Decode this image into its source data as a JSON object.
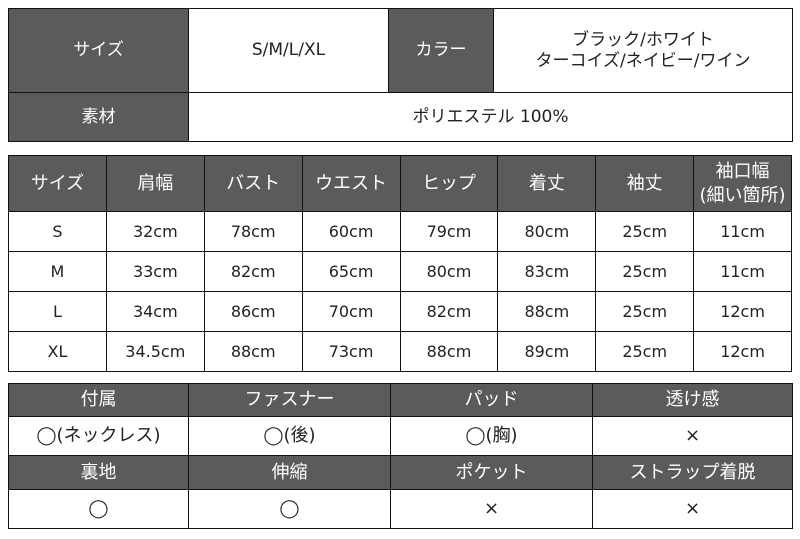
{
  "spec": {
    "size_label": "サイズ",
    "size_value": "S/M/L/XL",
    "color_label": "カラー",
    "color_line1": "ブラック/ホワイト",
    "color_line2": "ターコイズ/ネイビー/ワイン",
    "material_label": "素材",
    "material_value": "ポリエステル 100%"
  },
  "sizes": {
    "headers": [
      "サイズ",
      "肩幅",
      "バスト",
      "ウエスト",
      "ヒップ",
      "着丈",
      "袖丈"
    ],
    "last_header_line1": "袖口幅",
    "last_header_line2": "(細い箇所)",
    "rows": [
      [
        "S",
        "32cm",
        "78cm",
        "60cm",
        "79cm",
        "80cm",
        "25cm",
        "11cm"
      ],
      [
        "M",
        "33cm",
        "82cm",
        "65cm",
        "80cm",
        "83cm",
        "25cm",
        "11cm"
      ],
      [
        "L",
        "34cm",
        "86cm",
        "70cm",
        "82cm",
        "88cm",
        "25cm",
        "12cm"
      ],
      [
        "XL",
        "34.5cm",
        "88cm",
        "73cm",
        "88cm",
        "89cm",
        "25cm",
        "12cm"
      ]
    ]
  },
  "features": {
    "row1_headers": [
      "付属",
      "ファスナー",
      "パッド",
      "透け感"
    ],
    "row1_values": [
      "◯(ネックレス)",
      "◯(後)",
      "◯(胸)",
      "×"
    ],
    "row2_headers": [
      "裏地",
      "伸縮",
      "ポケット",
      "ストラップ着脱"
    ],
    "row2_values": [
      "◯",
      "◯",
      "×",
      "×"
    ]
  }
}
